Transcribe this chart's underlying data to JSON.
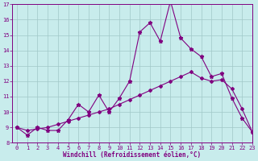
{
  "xlabel": "Windchill (Refroidissement éolien,°C)",
  "ylabel": "",
  "background_color": "#c8ecec",
  "line_color": "#800080",
  "grid_color": "#a0c8c8",
  "x_data": [
    0,
    1,
    2,
    3,
    4,
    5,
    6,
    7,
    8,
    9,
    10,
    11,
    12,
    13,
    14,
    15,
    16,
    17,
    18,
    19,
    20,
    21,
    22,
    23
  ],
  "y_main": [
    9.0,
    8.5,
    9.0,
    8.8,
    8.8,
    9.5,
    10.5,
    10.0,
    11.1,
    10.0,
    10.9,
    12.0,
    15.2,
    15.8,
    14.6,
    17.2,
    14.8,
    14.1,
    13.6,
    12.3,
    12.5,
    10.9,
    9.6,
    8.7
  ],
  "y_trend": [
    9.0,
    8.8,
    8.9,
    9.0,
    9.2,
    9.4,
    9.6,
    9.8,
    10.0,
    10.2,
    10.5,
    10.8,
    11.1,
    11.4,
    11.7,
    12.0,
    12.3,
    12.6,
    12.2,
    12.0,
    12.1,
    11.5,
    10.2,
    8.7
  ],
  "ylim": [
    8,
    17
  ],
  "xlim": [
    -0.5,
    23
  ],
  "yticks": [
    8,
    9,
    10,
    11,
    12,
    13,
    14,
    15,
    16,
    17
  ],
  "xticks": [
    0,
    1,
    2,
    3,
    4,
    5,
    6,
    7,
    8,
    9,
    10,
    11,
    12,
    13,
    14,
    15,
    16,
    17,
    18,
    19,
    20,
    21,
    22,
    23
  ],
  "tick_fontsize": 5.0,
  "xlabel_fontsize": 5.5
}
